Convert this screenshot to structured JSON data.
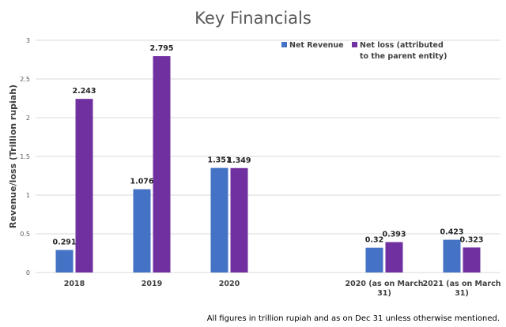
{
  "chart_data": {
    "type": "bar",
    "title": "Key Financials",
    "ylabel": "Revenue/loss (Trillion rupiah)",
    "xlabel": "",
    "ylim": [
      0,
      3
    ],
    "yticks": [
      "0",
      "0.5",
      "1",
      "1.5",
      "2",
      "2.5",
      "3"
    ],
    "grid": true,
    "legend_placement": "top-right",
    "categories": [
      "2018",
      "2019",
      "2020",
      "",
      "2020 (as on March 31)",
      "2021 (as on March 31)"
    ],
    "category_lines": [
      [
        "2018"
      ],
      [
        "2019"
      ],
      [
        "2020"
      ],
      [
        ""
      ],
      [
        "2020 (as on March",
        "31)"
      ],
      [
        "2021 (as on March",
        "31)"
      ]
    ],
    "series": [
      {
        "name": "Net Revenue",
        "color": "#4472C4",
        "values": [
          0.291,
          1.076,
          1.351,
          null,
          0.32,
          0.423
        ],
        "labels": [
          "0.291",
          "1.076",
          "1.351",
          "",
          "0.32",
          "0.423"
        ]
      },
      {
        "name": "Net loss (attributed to the parent entity)",
        "legend_lines": [
          "Net loss (attributed",
          "to the parent entity)"
        ],
        "color": "#7030A0",
        "values": [
          2.243,
          2.795,
          1.349,
          null,
          0.393,
          0.323
        ],
        "labels": [
          "2.243",
          "2.795",
          "1.349",
          "",
          "0.393",
          "0.323"
        ]
      }
    ],
    "footnote": "All figures in trillion rupiah and as on Dec 31 unless otherwise mentioned."
  }
}
